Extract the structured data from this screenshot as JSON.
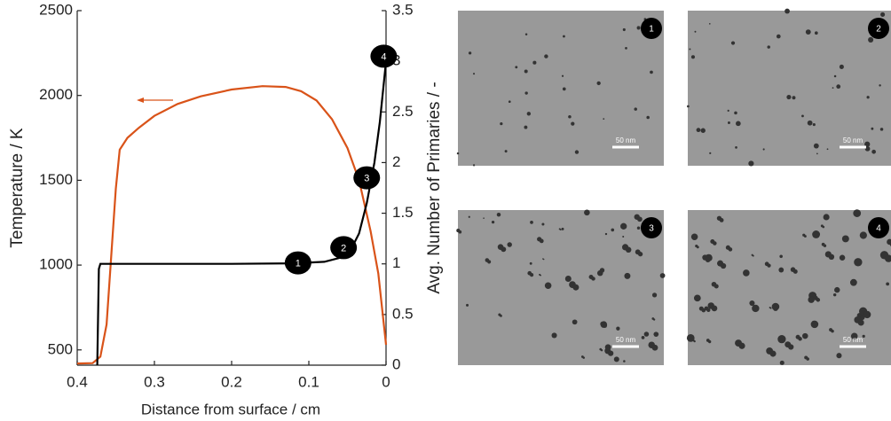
{
  "chart_data": {
    "type": "line",
    "xlabel": "Distance from surface / cm",
    "ylabel": "Temperature / K",
    "y2label": "Avg. Number of Primaries / -",
    "xlim": [
      0.4,
      0
    ],
    "xticks": [
      0.4,
      0.3,
      0.2,
      0.1,
      0
    ],
    "ylim": [
      410,
      2500
    ],
    "yticks": [
      500,
      1000,
      1500,
      2000,
      2500
    ],
    "y2lim": [
      0,
      3.5
    ],
    "y2ticks": [
      0,
      0.5,
      1,
      1.5,
      2,
      2.5,
      3,
      3.5
    ],
    "grid": false,
    "series": [
      {
        "color": "#d95319",
        "x": [
          0.4,
          0.38,
          0.37,
          0.362,
          0.356,
          0.35,
          0.345,
          0.335,
          0.32,
          0.3,
          0.27,
          0.24,
          0.2,
          0.16,
          0.13,
          0.11,
          0.09,
          0.07,
          0.05,
          0.035,
          0.02,
          0.01,
          0
        ],
        "values": [
          420,
          422,
          460,
          650,
          1050,
          1450,
          1680,
          1750,
          1810,
          1880,
          1950,
          1995,
          2035,
          2055,
          2050,
          2025,
          1970,
          1860,
          1690,
          1500,
          1200,
          950,
          530
        ]
      },
      {
        "color": "#000000",
        "axis": "y2",
        "x": [
          0.374,
          0.372,
          0.37,
          0.3,
          0.2,
          0.12,
          0.08,
          0.06,
          0.045,
          0.035,
          0.025,
          0.015,
          0.008,
          0
        ],
        "values": [
          0,
          0.95,
          1.0,
          1.0,
          1.0,
          1.005,
          1.02,
          1.06,
          1.15,
          1.3,
          1.6,
          2.0,
          2.4,
          3.0
        ]
      }
    ],
    "markers": [
      {
        "label": "1",
        "x": 0.114,
        "y": 1.01
      },
      {
        "label": "2",
        "x": 0.055,
        "y": 1.16
      },
      {
        "label": "3",
        "x": 0.025,
        "y": 1.85
      },
      {
        "label": "4",
        "x": 0.003,
        "y": 3.05
      }
    ]
  },
  "micrographs": [
    {
      "label": "1",
      "scale_bar": "50 nm"
    },
    {
      "label": "2",
      "scale_bar": "50 nm"
    },
    {
      "label": "3",
      "scale_bar": "50 nm"
    },
    {
      "label": "4",
      "scale_bar": "50 nm"
    }
  ]
}
